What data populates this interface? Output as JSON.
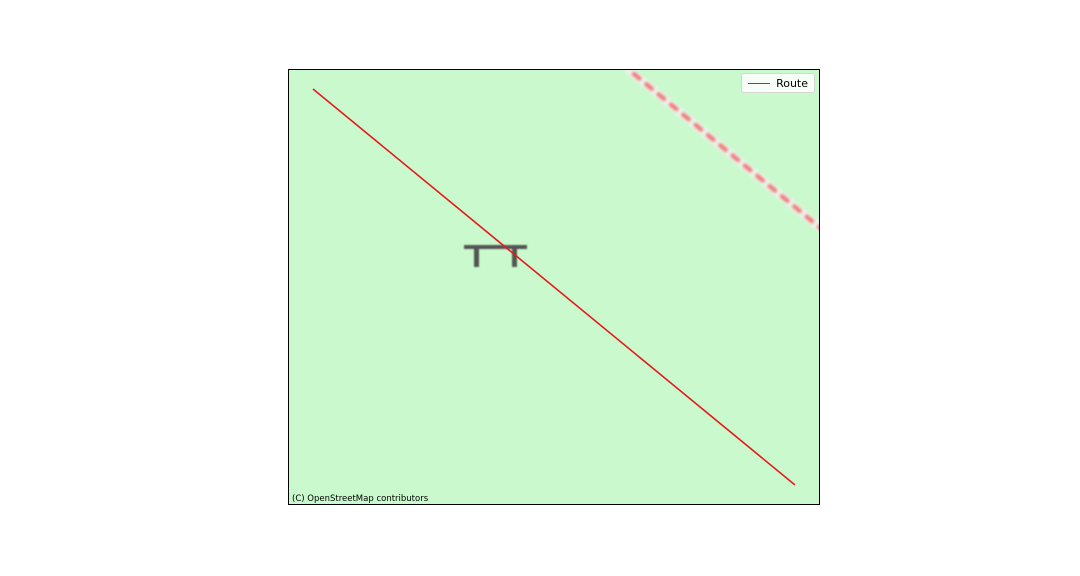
{
  "map": {
    "background_color": "#c9f9cc",
    "route_color": "#e41a1c",
    "dashed_path_color": "#f08080",
    "bench_icon": "bench-icon",
    "legend": {
      "route_label": "Route"
    },
    "attribution": "(C) OpenStreetMap contributors"
  }
}
